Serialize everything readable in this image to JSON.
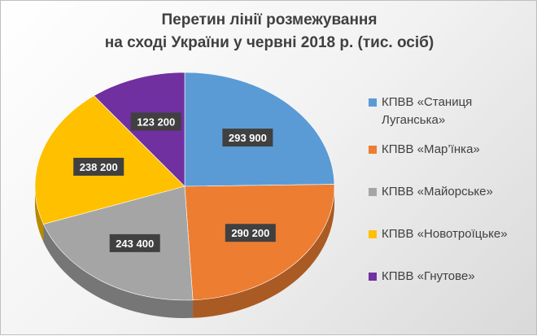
{
  "chart_data": {
    "type": "pie",
    "title": [
      "Перетин лінії розмежування",
      "на сході України у червні 2018 р. (тис. осіб)"
    ],
    "categories": [
      "КПВВ «Станиця Луганська»",
      "КПВВ «Мар’їнка»",
      "КПВВ «Майорське»",
      "КПВВ «Новотроїцьке»",
      "КПВВ «Гнутове»"
    ],
    "values": [
      293900,
      290200,
      243400,
      238200,
      123200
    ],
    "labels": [
      "293 900",
      "290 200",
      "243 400",
      "238 200",
      "123 200"
    ],
    "colors": [
      "#5b9bd5",
      "#ed7d31",
      "#a5a5a5",
      "#ffc000",
      "#7030a0"
    ],
    "legend_placement": "right",
    "style": "3d"
  }
}
